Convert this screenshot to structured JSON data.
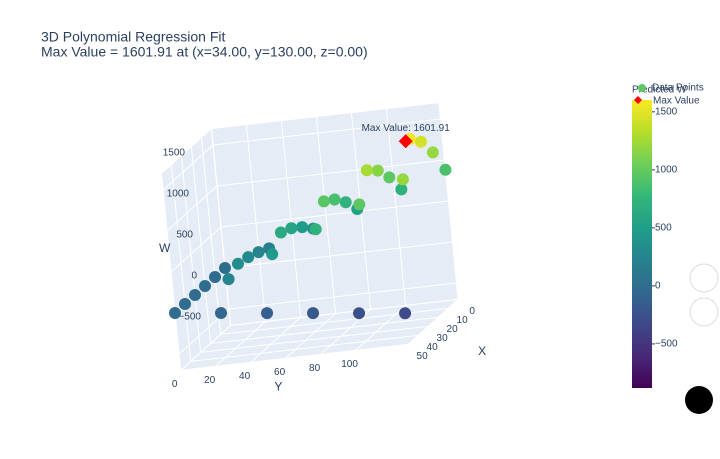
{
  "chart_data": {
    "type": "scatter3d",
    "title": "3D Polynomial Regression Fit",
    "subtitle": "Max Value = 1601.91 at (x=34.00, y=130.00, z=0.00)",
    "xlabel": "X",
    "ylabel": "Y",
    "zlabel": "W",
    "xlim": [
      0,
      50
    ],
    "ylim": [
      0,
      130
    ],
    "zlim": [
      -700,
      1700
    ],
    "xticks": [
      0,
      10,
      20,
      30,
      40,
      50
    ],
    "yticks": [
      0,
      20,
      40,
      60,
      80,
      100
    ],
    "zticks": [
      {
        "value": -500,
        "label": "−500"
      },
      0,
      500,
      1000,
      1500
    ],
    "colorbar": {
      "title": "Predicted W",
      "clim": [
        -880,
        1602
      ],
      "ticks": [
        {
          "value": -500,
          "label": "−500"
        },
        0,
        500,
        1000,
        1500
      ],
      "colorscale": [
        "#440154",
        "#482878",
        "#3e4989",
        "#31688e",
        "#26828e",
        "#1f9e89",
        "#35b779",
        "#6ece58",
        "#b5de2b",
        "#fde725"
      ]
    },
    "series": [
      {
        "name": "Data Points",
        "x": [
          0,
          0,
          0,
          0,
          0,
          0,
          10,
          10,
          10,
          10,
          10,
          10,
          20,
          20,
          20,
          20,
          20,
          20,
          30,
          30,
          30,
          30,
          30,
          30,
          40,
          40,
          40,
          40,
          40,
          40,
          50,
          50,
          50,
          50,
          50,
          50
        ],
        "y": [
          0,
          26,
          52,
          78,
          104,
          130,
          0,
          26,
          52,
          78,
          104,
          130,
          0,
          26,
          52,
          78,
          104,
          130,
          0,
          26,
          52,
          78,
          104,
          130,
          0,
          26,
          52,
          78,
          104,
          130,
          0,
          26,
          52,
          78,
          104,
          130
        ],
        "values": [
          0,
          176,
          353,
          529,
          705,
          881,
          0,
          240,
          481,
          721,
          961,
          1202,
          0,
          288,
          577,
          865,
          1153,
          1442,
          0,
          317,
          635,
          951,
          1268,
          1586,
          0,
          240,
          481,
          721,
          961,
          1202,
          0,
          -64,
          -128,
          -192,
          -256,
          -320
        ]
      },
      {
        "name": "Max Value",
        "color": "#ff0000",
        "x": [
          34
        ],
        "y": [
          130
        ],
        "values": [
          1601.91
        ]
      }
    ],
    "annotation": "Max Value: 1601.91"
  }
}
